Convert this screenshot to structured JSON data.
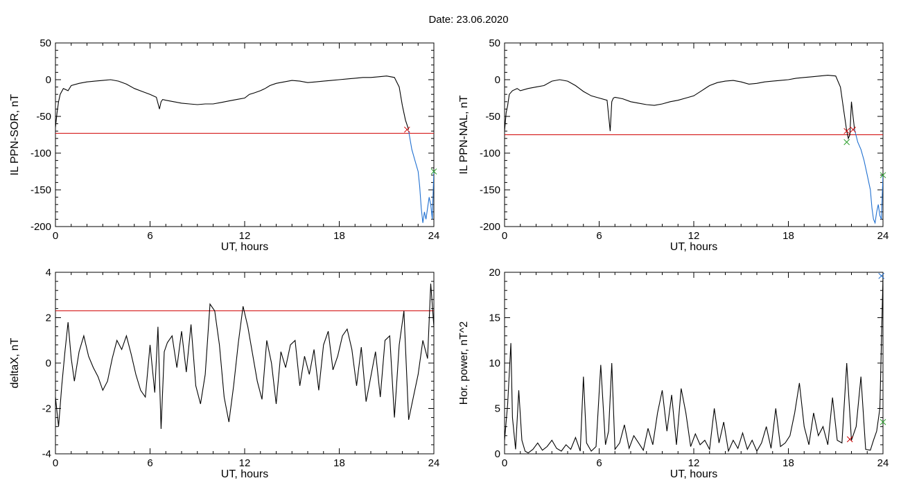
{
  "page_title": "Date:  23.06.2020",
  "chart_data": [
    {
      "type": "line",
      "xlabel": "UT, hours",
      "ylabel": "IL PPN-SOR, nT",
      "xlim": [
        0,
        24
      ],
      "ylim": [
        -200,
        50
      ],
      "xticks": [
        "0",
        "6",
        "12",
        "18",
        "24"
      ],
      "yticks": [
        "50",
        "0",
        "-50",
        "-100",
        "-150",
        "-200"
      ],
      "series": [
        {
          "color": "#000000",
          "x": [
            0,
            0.1,
            0.2,
            0.3,
            0.5,
            0.8,
            1.0,
            1.5,
            2.0,
            2.5,
            3.0,
            3.5,
            4.0,
            4.5,
            5.0,
            5.5,
            6.0,
            6.4,
            6.6,
            6.7,
            6.8,
            7.0,
            7.5,
            8.0,
            8.5,
            9.0,
            9.5,
            10.0,
            10.5,
            11.0,
            11.5,
            12.0,
            12.3,
            12.6,
            13.0,
            13.3,
            13.6,
            14.0,
            14.5,
            15.0,
            15.5,
            16.0,
            16.5,
            17.0,
            17.5,
            18.0,
            18.5,
            19.0,
            19.5,
            20.0,
            20.5,
            21.0,
            21.5,
            21.8,
            22.0,
            22.2,
            22.4
          ],
          "y": [
            -65,
            -45,
            -30,
            -20,
            -12,
            -15,
            -8,
            -5,
            -3,
            -2,
            -1,
            0,
            -2,
            -6,
            -12,
            -16,
            -20,
            -24,
            -40,
            -30,
            -27,
            -28,
            -30,
            -32,
            -33,
            -34,
            -33,
            -33,
            -31,
            -29,
            -27,
            -25,
            -20,
            -18,
            -15,
            -12,
            -8,
            -5,
            -3,
            -1,
            -2,
            -4,
            -3,
            -2,
            -1,
            0,
            1,
            2,
            3,
            3,
            4,
            5,
            3,
            -10,
            -35,
            -55,
            -68
          ]
        },
        {
          "color": "#1f6fd0",
          "x": [
            22.4,
            22.6,
            22.8,
            23.0,
            23.1,
            23.2,
            23.3,
            23.4,
            23.5,
            23.6,
            23.7,
            23.8,
            23.9,
            24.0
          ],
          "y": [
            -70,
            -95,
            -110,
            -125,
            -145,
            -175,
            -195,
            -180,
            -190,
            -175,
            -160,
            -170,
            -190,
            -125
          ]
        }
      ],
      "threshold": {
        "y": -73,
        "color": "#d00000"
      },
      "markers": [
        {
          "x": 22.3,
          "y": -68,
          "color": "#d00000",
          "symbol": "x"
        },
        {
          "x": 24.0,
          "y": -125,
          "color": "#2ca02c",
          "symbol": "x"
        }
      ]
    },
    {
      "type": "line",
      "xlabel": "UT, hours",
      "ylabel": "IL PPN-NAL, nT",
      "xlim": [
        0,
        24
      ],
      "ylim": [
        -200,
        50
      ],
      "xticks": [
        "0",
        "6",
        "12",
        "18",
        "24"
      ],
      "yticks": [
        "50",
        "0",
        "-50",
        "-100",
        "-150",
        "-200"
      ],
      "series": [
        {
          "color": "#000000",
          "x": [
            0,
            0.1,
            0.2,
            0.3,
            0.5,
            0.8,
            1.0,
            1.5,
            2.0,
            2.5,
            3.0,
            3.5,
            4.0,
            4.5,
            5.0,
            5.5,
            6.0,
            6.5,
            6.7,
            6.8,
            6.9,
            7.0,
            7.5,
            8.0,
            8.5,
            9.0,
            9.5,
            10.0,
            10.5,
            11.0,
            11.5,
            12.0,
            12.5,
            13.0,
            13.5,
            14.0,
            14.5,
            15.0,
            15.5,
            16.0,
            16.5,
            17.0,
            17.5,
            18.0,
            18.5,
            19.0,
            19.5,
            20.0,
            20.5,
            21.0,
            21.3,
            21.5,
            21.7,
            21.8,
            21.9,
            22.0,
            22.1,
            22.2
          ],
          "y": [
            -70,
            -45,
            -35,
            -20,
            -15,
            -12,
            -15,
            -12,
            -10,
            -8,
            -2,
            0,
            -2,
            -8,
            -16,
            -22,
            -25,
            -28,
            -70,
            -30,
            -25,
            -24,
            -26,
            -30,
            -32,
            -34,
            -35,
            -33,
            -30,
            -28,
            -25,
            -22,
            -15,
            -8,
            -4,
            -2,
            -1,
            -3,
            -6,
            -5,
            -3,
            -2,
            -1,
            0,
            2,
            3,
            4,
            5,
            6,
            5,
            -10,
            -40,
            -70,
            -80,
            -75,
            -30,
            -50,
            -68
          ]
        },
        {
          "color": "#1f6fd0",
          "x": [
            22.2,
            22.4,
            22.6,
            22.8,
            23.0,
            23.2,
            23.3,
            23.4,
            23.5,
            23.6,
            23.7,
            23.8,
            23.9,
            24.0
          ],
          "y": [
            -68,
            -85,
            -95,
            -110,
            -130,
            -150,
            -175,
            -190,
            -195,
            -180,
            -170,
            -185,
            -190,
            -130
          ]
        }
      ],
      "threshold": {
        "y": -75,
        "color": "#d00000"
      },
      "markers": [
        {
          "x": 21.7,
          "y": -70,
          "color": "#d00000",
          "symbol": "x"
        },
        {
          "x": 22.1,
          "y": -68,
          "color": "#d00000",
          "symbol": "x"
        },
        {
          "x": 21.7,
          "y": -85,
          "color": "#2ca02c",
          "symbol": "x"
        },
        {
          "x": 24.0,
          "y": -130,
          "color": "#2ca02c",
          "symbol": "x"
        }
      ]
    },
    {
      "type": "line",
      "xlabel": "UT, hours",
      "ylabel": "deltaX, nT",
      "xlim": [
        0,
        24
      ],
      "ylim": [
        -4,
        4
      ],
      "xticks": [
        "0",
        "6",
        "12",
        "18",
        "24"
      ],
      "yticks": [
        "4",
        "2",
        "0",
        "-2",
        "-4"
      ],
      "series": [
        {
          "color": "#000000",
          "x": [
            0,
            0.2,
            0.4,
            0.6,
            0.8,
            1.0,
            1.2,
            1.5,
            1.8,
            2.1,
            2.4,
            2.7,
            3.0,
            3.3,
            3.6,
            3.9,
            4.2,
            4.5,
            4.8,
            5.1,
            5.4,
            5.7,
            6.0,
            6.3,
            6.5,
            6.7,
            6.9,
            7.1,
            7.4,
            7.7,
            8.0,
            8.3,
            8.6,
            8.9,
            9.2,
            9.5,
            9.8,
            10.1,
            10.4,
            10.7,
            11.0,
            11.3,
            11.6,
            11.9,
            12.2,
            12.5,
            12.8,
            13.1,
            13.4,
            13.7,
            14.0,
            14.3,
            14.6,
            14.9,
            15.2,
            15.5,
            15.8,
            16.1,
            16.4,
            16.7,
            17.0,
            17.3,
            17.6,
            17.9,
            18.2,
            18.5,
            18.8,
            19.1,
            19.4,
            19.7,
            20.0,
            20.3,
            20.6,
            20.9,
            21.2,
            21.5,
            21.8,
            22.1,
            22.4,
            22.7,
            23.0,
            23.3,
            23.6,
            23.8,
            24.0
          ],
          "y": [
            -1.5,
            -2.8,
            -1.0,
            0.5,
            1.8,
            0.2,
            -0.8,
            0.5,
            1.2,
            0.3,
            -0.2,
            -0.6,
            -1.2,
            -0.8,
            0.2,
            1.0,
            0.6,
            1.2,
            0.4,
            -0.5,
            -1.2,
            -1.5,
            0.8,
            -1.3,
            1.6,
            -2.9,
            0.5,
            0.9,
            1.2,
            -0.2,
            1.4,
            -0.4,
            1.7,
            -1.0,
            -1.8,
            -0.5,
            2.6,
            2.3,
            0.8,
            -1.5,
            -2.6,
            -1.0,
            0.9,
            2.5,
            1.6,
            0.4,
            -0.8,
            -1.6,
            1.0,
            0.0,
            -1.8,
            0.5,
            -0.2,
            0.8,
            1.0,
            -1.0,
            0.3,
            -0.5,
            0.6,
            -1.2,
            0.8,
            1.4,
            -0.3,
            0.3,
            1.2,
            1.5,
            0.6,
            -1.0,
            0.7,
            -1.7,
            -0.6,
            0.5,
            -1.5,
            1.0,
            1.2,
            -2.4,
            0.8,
            2.3,
            -2.5,
            -1.5,
            -0.5,
            1.0,
            0.2,
            3.5,
            1.6
          ]
        }
      ],
      "threshold": {
        "y": 2.3,
        "color": "#d00000"
      },
      "markers": []
    },
    {
      "type": "line",
      "xlabel": "UT, hours",
      "ylabel": "Hor. power, nT^2",
      "xlim": [
        0,
        24
      ],
      "ylim": [
        0,
        20
      ],
      "xticks": [
        "0",
        "6",
        "12",
        "18",
        "24"
      ],
      "yticks": [
        "20",
        "15",
        "10",
        "5",
        "0"
      ],
      "series": [
        {
          "color": "#000000",
          "x": [
            0,
            0.2,
            0.4,
            0.5,
            0.7,
            0.9,
            1.1,
            1.3,
            1.5,
            1.8,
            2.1,
            2.4,
            2.7,
            3.0,
            3.3,
            3.6,
            3.9,
            4.2,
            4.5,
            4.8,
            5.0,
            5.2,
            5.5,
            5.8,
            6.1,
            6.4,
            6.6,
            6.8,
            7.0,
            7.3,
            7.6,
            7.9,
            8.2,
            8.5,
            8.8,
            9.1,
            9.4,
            9.7,
            10.0,
            10.3,
            10.6,
            10.9,
            11.2,
            11.5,
            11.8,
            12.1,
            12.4,
            12.7,
            13.0,
            13.3,
            13.6,
            13.9,
            14.2,
            14.5,
            14.8,
            15.1,
            15.4,
            15.7,
            16.0,
            16.3,
            16.6,
            16.9,
            17.2,
            17.5,
            17.8,
            18.1,
            18.4,
            18.7,
            19.0,
            19.3,
            19.6,
            19.9,
            20.2,
            20.5,
            20.8,
            21.1,
            21.4,
            21.7,
            22.0,
            22.3,
            22.6,
            22.9,
            23.2,
            23.4,
            23.6,
            23.8,
            24.0
          ],
          "y": [
            1.5,
            5.5,
            12.2,
            4.0,
            0.5,
            7.0,
            1.5,
            0.3,
            0.1,
            0.5,
            1.2,
            0.4,
            0.8,
            1.5,
            0.6,
            0.3,
            1.0,
            0.5,
            1.8,
            0.3,
            8.5,
            1.2,
            0.3,
            0.8,
            9.8,
            1.0,
            2.5,
            10.0,
            0.5,
            1.2,
            3.2,
            0.6,
            2.0,
            1.2,
            0.4,
            2.8,
            1.0,
            4.5,
            7.0,
            2.5,
            6.5,
            1.0,
            7.2,
            4.5,
            0.8,
            2.2,
            1.0,
            1.5,
            0.5,
            5.0,
            1.2,
            3.5,
            0.3,
            1.5,
            0.6,
            2.3,
            0.5,
            1.5,
            0.3,
            1.2,
            3.0,
            0.6,
            5.0,
            0.8,
            1.2,
            2.0,
            4.5,
            7.8,
            3.0,
            1.0,
            4.5,
            2.0,
            3.0,
            1.0,
            6.2,
            1.5,
            1.2,
            10.0,
            1.5,
            3.0,
            8.5,
            0.5,
            0.4,
            1.5,
            2.5,
            5.0,
            19.5
          ]
        }
      ],
      "threshold": null,
      "markers": [
        {
          "x": 21.9,
          "y": 1.6,
          "color": "#d00000",
          "symbol": "x"
        },
        {
          "x": 23.9,
          "y": 19.6,
          "color": "#1f6fd0",
          "symbol": "x"
        },
        {
          "x": 24.0,
          "y": 3.5,
          "color": "#2ca02c",
          "symbol": "x"
        }
      ]
    }
  ]
}
